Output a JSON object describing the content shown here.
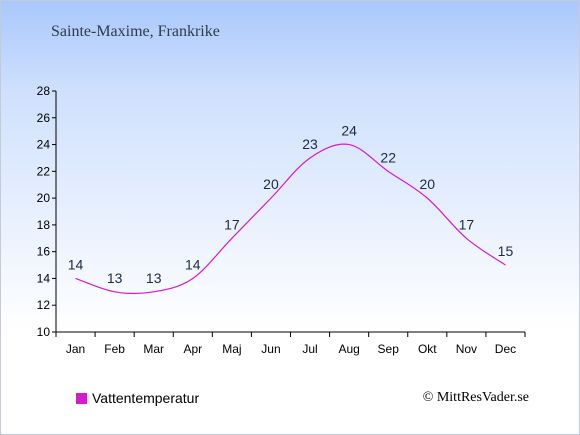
{
  "chart_data": {
    "type": "line",
    "title": "Sainte-Maxime, Frankrike",
    "categories": [
      "Jan",
      "Feb",
      "Mar",
      "Apr",
      "Maj",
      "Jun",
      "Jul",
      "Aug",
      "Sep",
      "Okt",
      "Nov",
      "Dec"
    ],
    "series": [
      {
        "name": "Vattentemperatur",
        "values": [
          14,
          13,
          13,
          14,
          17,
          20,
          23,
          24,
          22,
          20,
          17,
          15
        ],
        "color": "#d41ccc"
      }
    ],
    "ylim": [
      10,
      28
    ],
    "yticks": [
      10,
      12,
      14,
      16,
      18,
      20,
      22,
      24,
      26,
      28
    ],
    "xlabel": "",
    "ylabel": "",
    "grid": false,
    "legend_position": "bottom-left"
  },
  "credit": "© MittResVader.se"
}
